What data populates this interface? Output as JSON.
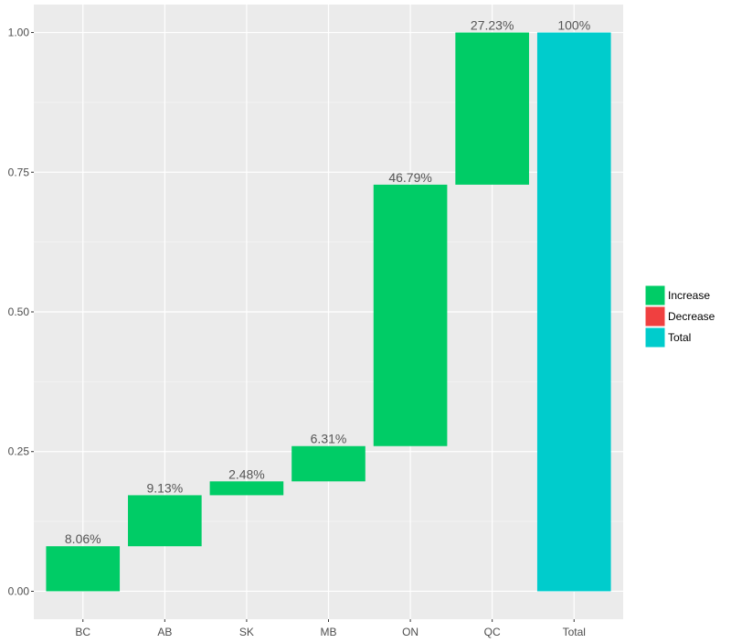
{
  "chart_data": {
    "type": "bar",
    "subtype": "waterfall",
    "categories": [
      "BC",
      "AB",
      "SK",
      "MB",
      "ON",
      "QC",
      "Total"
    ],
    "bars": [
      {
        "category": "BC",
        "start": 0.0,
        "end": 0.0806,
        "kind": "Increase",
        "label": "8.06%"
      },
      {
        "category": "AB",
        "start": 0.0806,
        "end": 0.1719,
        "kind": "Increase",
        "label": "9.13%"
      },
      {
        "category": "SK",
        "start": 0.1719,
        "end": 0.1967,
        "kind": "Increase",
        "label": "2.48%"
      },
      {
        "category": "MB",
        "start": 0.1967,
        "end": 0.2598,
        "kind": "Increase",
        "label": "6.31%"
      },
      {
        "category": "ON",
        "start": 0.2598,
        "end": 0.7277,
        "kind": "Increase",
        "label": "46.79%"
      },
      {
        "category": "QC",
        "start": 0.7277,
        "end": 1.0,
        "kind": "Increase",
        "label": "27.23%"
      },
      {
        "category": "Total",
        "start": 0.0,
        "end": 1.0,
        "kind": "Total",
        "label": "100%"
      }
    ],
    "y_ticks": [
      0.0,
      0.25,
      0.5,
      0.75,
      1.0
    ],
    "y_tick_labels": [
      "0.00",
      "0.25",
      "0.50",
      "0.75",
      "1.00"
    ],
    "ylim": [
      -0.05,
      1.05
    ],
    "title": "",
    "xlabel": "",
    "ylabel": "",
    "grid": true,
    "legend": {
      "position": "right",
      "entries": [
        {
          "label": "Increase",
          "color": "#00cc66"
        },
        {
          "label": "Decrease",
          "color": "#f04040"
        },
        {
          "label": "Total",
          "color": "#00cccc"
        }
      ]
    },
    "colors": {
      "panel_background": "#ebebeb",
      "grid_major": "#ffffff",
      "grid_minor": "#f5f5f5"
    }
  }
}
